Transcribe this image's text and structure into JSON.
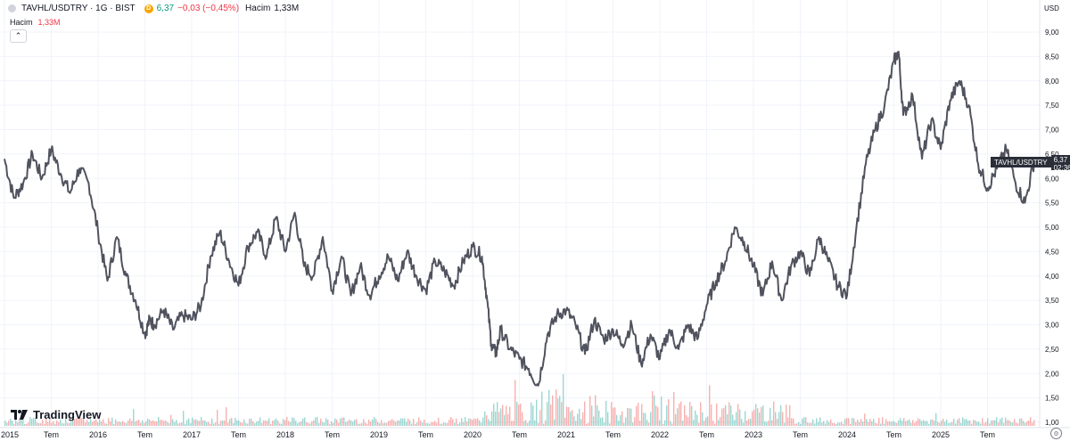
{
  "legend": {
    "symbol": "TAVHL/USDTRY · 1G · BIST",
    "badge": "D",
    "last": "6,37",
    "change": "−0,03 (−0,45%)",
    "volume_label": "Hacim",
    "volume_value": "1,33M"
  },
  "volume_legend": {
    "label": "Hacim",
    "value": "1,33M"
  },
  "collapse_icon": "chevron-up-icon",
  "axis": {
    "currency": "USD"
  },
  "price_tag": {
    "name": "TAVHL/USDTRY",
    "price": "6,37",
    "countdown": "02:36:43"
  },
  "brand": {
    "name": "TradingView"
  },
  "colors": {
    "line": "#50535e",
    "up": "#26a69a",
    "down": "#ef5350",
    "grid": "#f0f3fa"
  },
  "chart_data": {
    "type": "line",
    "y_ticks": [
      "9,00",
      "8,50",
      "8,00",
      "7,50",
      "7,00",
      "6,50",
      "6,00",
      "5,50",
      "5,00",
      "4,50",
      "4,00",
      "3,50",
      "3,00",
      "2,50",
      "2,00",
      "1,50",
      "1,00"
    ],
    "x_ticks": [
      "2015",
      "Tem",
      "2016",
      "Tem",
      "2017",
      "Tem",
      "2018",
      "Tem",
      "2019",
      "Tem",
      "2020",
      "Tem",
      "2021",
      "Tem",
      "2022",
      "Tem",
      "2023",
      "Tem",
      "2024",
      "Tem",
      "2025",
      "Tem"
    ],
    "ylim": [
      1.0,
      9.0
    ],
    "scale": "linear",
    "grid": true,
    "series": [
      {
        "x": [
          2015.0,
          2015.1,
          2015.2,
          2015.3,
          2015.4,
          2015.5,
          2015.6,
          2015.7,
          2015.8,
          2015.9,
          2016.0,
          2016.1,
          2016.2,
          2016.3,
          2016.4,
          2016.5,
          2016.55,
          2016.6,
          2016.7,
          2016.8,
          2016.9,
          2017.0,
          2017.1,
          2017.2,
          2017.3,
          2017.4,
          2017.5,
          2017.6,
          2017.7,
          2017.8,
          2017.9,
          2018.0,
          2018.1,
          2018.2,
          2018.3,
          2018.4,
          2018.5,
          2018.6,
          2018.7,
          2018.8,
          2018.9,
          2019.0,
          2019.1,
          2019.2,
          2019.3,
          2019.4,
          2019.5,
          2019.6,
          2019.7,
          2019.8,
          2019.9,
          2020.0,
          2020.1,
          2020.15,
          2020.2,
          2020.25,
          2020.3,
          2020.4,
          2020.5,
          2020.6,
          2020.7,
          2020.8,
          2020.9,
          2021.0,
          2021.1,
          2021.2,
          2021.3,
          2021.4,
          2021.5,
          2021.6,
          2021.7,
          2021.8,
          2021.9,
          2022.0,
          2022.1,
          2022.2,
          2022.3,
          2022.4,
          2022.5,
          2022.6,
          2022.7,
          2022.8,
          2022.9,
          2023.0,
          2023.1,
          2023.2,
          2023.3,
          2023.4,
          2023.5,
          2023.6,
          2023.7,
          2023.8,
          2023.9,
          2024.0,
          2024.1,
          2024.2,
          2024.3,
          2024.4,
          2024.5,
          2024.55,
          2024.6,
          2024.7,
          2024.8,
          2024.9,
          2025.0,
          2025.1,
          2025.2,
          2025.3,
          2025.4,
          2025.5,
          2025.6,
          2025.7,
          2025.8,
          2025.9,
          2026.0
        ],
        "values": [
          6.4,
          5.6,
          5.9,
          6.5,
          6.0,
          6.6,
          6.1,
          5.7,
          6.2,
          5.9,
          4.9,
          3.9,
          4.8,
          4.0,
          3.5,
          2.8,
          3.1,
          3.0,
          3.3,
          2.9,
          3.2,
          3.1,
          3.4,
          4.4,
          4.9,
          4.3,
          3.8,
          4.6,
          4.9,
          4.4,
          5.2,
          4.5,
          5.3,
          4.2,
          4.0,
          4.8,
          3.7,
          4.4,
          3.6,
          4.2,
          3.6,
          4.0,
          4.4,
          3.9,
          4.5,
          4.0,
          3.7,
          4.3,
          4.1,
          3.8,
          4.3,
          4.6,
          4.4,
          3.6,
          2.6,
          2.4,
          2.9,
          2.5,
          2.3,
          2.1,
          1.75,
          2.8,
          3.2,
          3.3,
          3.0,
          2.4,
          3.1,
          2.7,
          2.9,
          2.6,
          3.0,
          2.2,
          2.8,
          2.3,
          2.9,
          2.5,
          3.0,
          2.7,
          3.4,
          3.9,
          4.3,
          5.0,
          4.7,
          4.2,
          3.6,
          4.3,
          3.5,
          4.2,
          4.5,
          4.0,
          4.8,
          4.3,
          3.8,
          3.6,
          5.0,
          6.3,
          7.0,
          7.5,
          8.4,
          8.6,
          7.3,
          7.7,
          6.4,
          7.2,
          6.6,
          7.6,
          8.0,
          7.5,
          6.3,
          5.8,
          6.2,
          6.6,
          5.9,
          5.5,
          6.37
        ]
      }
    ]
  }
}
